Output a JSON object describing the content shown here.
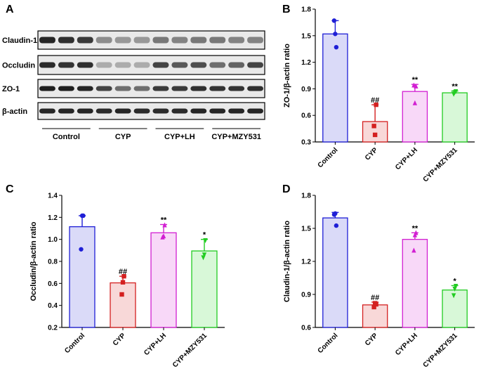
{
  "figure": {
    "panel_a": {
      "letter": "A",
      "band_labels": [
        "Claudin-1",
        "Occludin",
        "ZO-1",
        "β-actin"
      ],
      "group_labels": [
        "Control",
        "CYP",
        "CYP+LH",
        "CYP+MZY531"
      ]
    }
  },
  "chart_data": [
    {
      "type": "bar",
      "letter": "B",
      "categories": [
        "Control",
        "CYP",
        "CYP+LH",
        "CYP+MZY531"
      ],
      "values": [
        1.52,
        0.53,
        0.87,
        0.855
      ],
      "errors": [
        0.15,
        0.19,
        0.08,
        0.02
      ],
      "points": [
        [
          1.67,
          1.52,
          1.37
        ],
        [
          0.48,
          0.38,
          0.72
        ],
        [
          0.94,
          0.74,
          0.93
        ],
        [
          0.84,
          0.86,
          0.87
        ]
      ],
      "significance": [
        "",
        "##",
        "**",
        "**"
      ],
      "ylabel": "ZO-1/β-actin ratio",
      "ylim": [
        0.3,
        1.8
      ],
      "yticks": [
        "0.3",
        "0.6",
        "0.9",
        "1.2",
        "1.5",
        "1.8"
      ],
      "marker_shapes": [
        "circle",
        "square",
        "triangle-up",
        "triangle-down"
      ],
      "colors": {
        "stroke": [
          "#1f1fd6",
          "#d42020",
          "#d21fd2",
          "#22cc22"
        ],
        "fill": [
          "#dadaf8",
          "#f8d8d8",
          "#f8d8f8",
          "#d8f8d8"
        ]
      }
    },
    {
      "type": "bar",
      "letter": "C",
      "categories": [
        "Control",
        "CYP",
        "CYP+LH",
        "CYP+MZY531"
      ],
      "values": [
        1.115,
        0.605,
        1.06,
        0.895
      ],
      "errors": [
        0.1,
        0.06,
        0.075,
        0.105
      ],
      "points": [
        [
          0.91,
          1.215,
          1.215
        ],
        [
          0.5,
          0.61,
          0.665
        ],
        [
          1.02,
          1.03,
          1.13
        ],
        [
          0.835,
          0.86,
          0.99
        ]
      ],
      "significance": [
        "",
        "##",
        "**",
        "*"
      ],
      "ylabel": "Occludin/β-actin ratio",
      "ylim": [
        0.2,
        1.4
      ],
      "yticks": [
        "0.2",
        "0.4",
        "0.6",
        "0.8",
        "1.0",
        "1.2",
        "1.4"
      ],
      "marker_shapes": [
        "circle",
        "square",
        "triangle-up",
        "triangle-down"
      ],
      "colors": {
        "stroke": [
          "#1f1fd6",
          "#d42020",
          "#d21fd2",
          "#22cc22"
        ],
        "fill": [
          "#dadaf8",
          "#f8d8d8",
          "#f8d8f8",
          "#d8f8d8"
        ]
      }
    },
    {
      "type": "bar",
      "letter": "D",
      "categories": [
        "Control",
        "CYP",
        "CYP+LH",
        "CYP+MZY531"
      ],
      "values": [
        1.595,
        0.805,
        1.4,
        0.94
      ],
      "errors": [
        0.05,
        0.025,
        0.06,
        0.04
      ],
      "points": [
        [
          1.625,
          1.635,
          1.525
        ],
        [
          0.785,
          0.82,
          0.81
        ],
        [
          1.3,
          1.44,
          1.46
        ],
        [
          0.89,
          0.95,
          0.975
        ]
      ],
      "significance": [
        "",
        "##",
        "**",
        "*"
      ],
      "ylabel": "Claudin-1/β-actin ratio",
      "ylim": [
        0.6,
        1.8
      ],
      "yticks": [
        "0.6",
        "0.9",
        "1.2",
        "1.5",
        "1.8"
      ],
      "marker_shapes": [
        "circle",
        "square",
        "triangle-up",
        "triangle-down"
      ],
      "colors": {
        "stroke": [
          "#1f1fd6",
          "#d42020",
          "#d21fd2",
          "#22cc22"
        ],
        "fill": [
          "#dadaf8",
          "#f8d8d8",
          "#f8d8f8",
          "#d8f8d8"
        ]
      }
    }
  ]
}
